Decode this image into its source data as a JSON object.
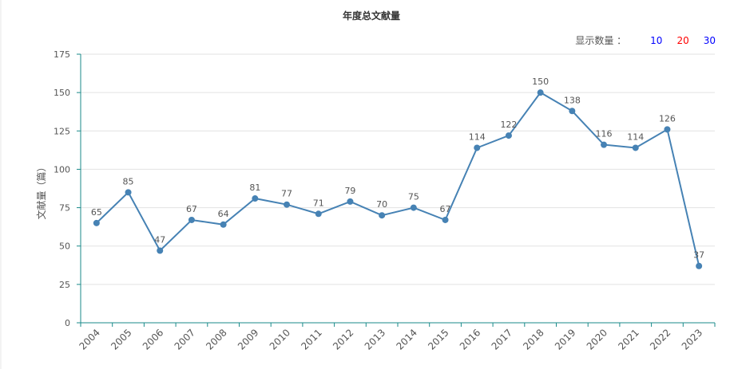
{
  "header": {
    "title": "年度总文献量",
    "show_count_label": "显示数量 ：",
    "show_options": [
      "10",
      "20",
      "30"
    ]
  },
  "colors": {
    "line": "#4682b4",
    "axis": "#1a8a8a",
    "grid": "#e2e2e2",
    "option_10": "#0000ff",
    "option_20": "#ff0000",
    "option_30": "#0000ff"
  },
  "chart_data": {
    "type": "line",
    "title": "年度总文献量",
    "xlabel": "",
    "ylabel": "文献量（篇）",
    "ylim": [
      0,
      175
    ],
    "yticks": [
      "0",
      "25",
      "50",
      "75",
      "100",
      "125",
      "150",
      "175"
    ],
    "grid": true,
    "categories": [
      "2004",
      "2005",
      "2006",
      "2007",
      "2008",
      "2009",
      "2010",
      "2011",
      "2012",
      "2013",
      "2014",
      "2015",
      "2016",
      "2017",
      "2018",
      "2019",
      "2020",
      "2021",
      "2022",
      "2023"
    ],
    "values": [
      65,
      85,
      47,
      67,
      64,
      81,
      77,
      71,
      79,
      70,
      75,
      67,
      114,
      122,
      150,
      138,
      116,
      114,
      126,
      37
    ]
  }
}
